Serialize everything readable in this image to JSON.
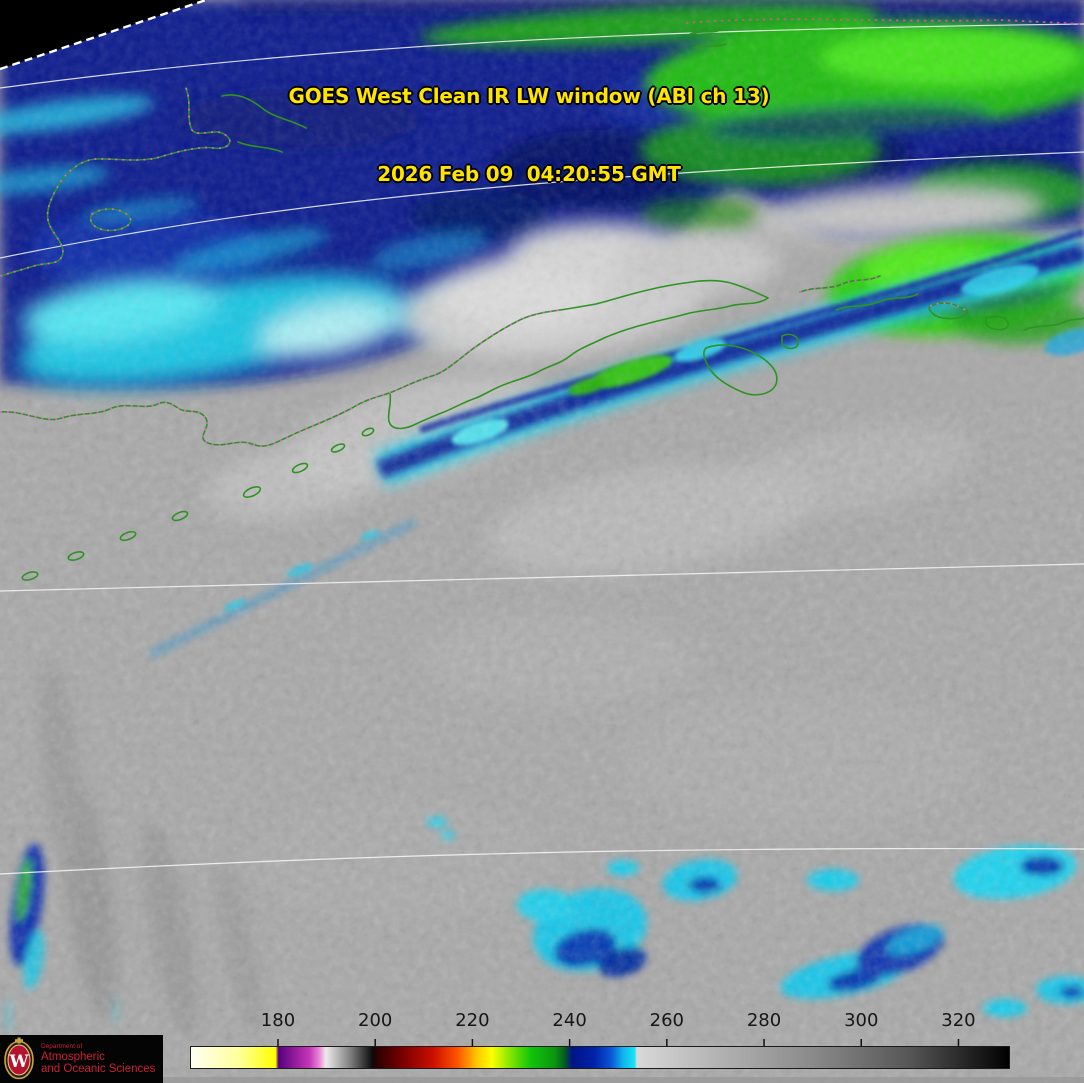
{
  "header": {
    "title_line1": "GOES West Clean IR LW window (ABI ch 13)",
    "title_line2": "2026 Feb 09  04:20:55 GMT",
    "text_color": "#ffe400"
  },
  "colorbar": {
    "min_value": 162,
    "max_value": 330.5,
    "tick_values": [
      180,
      200,
      220,
      240,
      260,
      280,
      300,
      320
    ],
    "tick_labels": [
      "180",
      "200",
      "220",
      "240",
      "260",
      "280",
      "300",
      "320"
    ],
    "border_color": "#1a1a1a",
    "stops": [
      {
        "v": 162,
        "c": "#fffff2"
      },
      {
        "v": 172,
        "c": "#ffff9a"
      },
      {
        "v": 179.5,
        "c": "#ffff00"
      },
      {
        "v": 180.1,
        "c": "#55007e"
      },
      {
        "v": 183,
        "c": "#8a1898"
      },
      {
        "v": 186.5,
        "c": "#c437b8"
      },
      {
        "v": 188.5,
        "c": "#ea86d8"
      },
      {
        "v": 189.8,
        "c": "#f0e6ec"
      },
      {
        "v": 190.5,
        "c": "#dedede"
      },
      {
        "v": 195,
        "c": "#7c7c7c"
      },
      {
        "v": 199.5,
        "c": "#0a0a0a"
      },
      {
        "v": 200.2,
        "c": "#2a0000"
      },
      {
        "v": 206,
        "c": "#7e0000"
      },
      {
        "v": 212,
        "c": "#cc0f00"
      },
      {
        "v": 217,
        "c": "#ff5500"
      },
      {
        "v": 221,
        "c": "#ffc800"
      },
      {
        "v": 224,
        "c": "#fdff00"
      },
      {
        "v": 228,
        "c": "#7ce400"
      },
      {
        "v": 232,
        "c": "#12c60a"
      },
      {
        "v": 237,
        "c": "#0b9410"
      },
      {
        "v": 239,
        "c": "#075a20"
      },
      {
        "v": 240.5,
        "c": "#001488"
      },
      {
        "v": 245,
        "c": "#0022a8"
      },
      {
        "v": 248.5,
        "c": "#0a55d6"
      },
      {
        "v": 251,
        "c": "#10b4ee"
      },
      {
        "v": 253.4,
        "c": "#19e4f8"
      },
      {
        "v": 253.8,
        "c": "#d8d8d8"
      },
      {
        "v": 270,
        "c": "#b4b4b4"
      },
      {
        "v": 290,
        "c": "#8a8a8a"
      },
      {
        "v": 310,
        "c": "#565656"
      },
      {
        "v": 330.5,
        "c": "#000000"
      }
    ]
  },
  "overlay_colors": {
    "coastline": "#2e9322",
    "political_boundary_dots": "#ef64e0",
    "graticule": "#f8f8f8",
    "scan_edge_dash": "#ffffff"
  },
  "logo": {
    "dept_line": "Department of",
    "name_line1": "Atmospheric",
    "name_line2": "and Oceanic Sciences",
    "text_color": "#cb2038",
    "bg_color": "#040404",
    "crest_letter": "W"
  }
}
